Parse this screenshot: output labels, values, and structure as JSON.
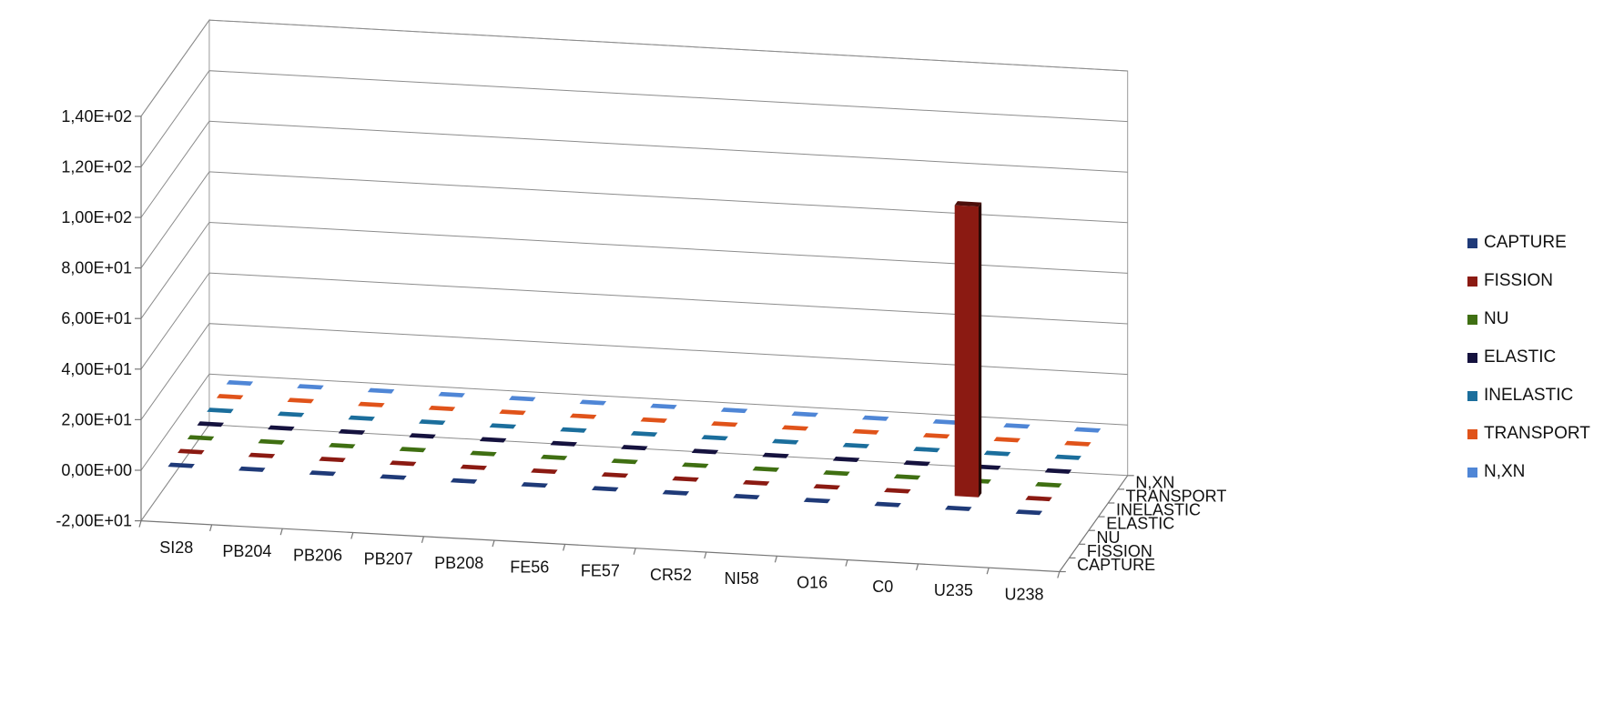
{
  "chart_data": {
    "type": "bar",
    "subtype": "3d-column",
    "title": "",
    "xlabel": "",
    "ylabel": "",
    "ylim": [
      -20,
      140
    ],
    "ytick_values": [
      -20,
      0,
      20,
      40,
      60,
      80,
      100,
      120,
      140
    ],
    "ytick_labels": [
      "-2,00E+01",
      "0,00E+00",
      "2,00E+01",
      "4,00E+01",
      "6,00E+01",
      "8,00E+01",
      "1,00E+02",
      "1,20E+02",
      "1,40E+02"
    ],
    "grid": true,
    "legend_position": "right",
    "categories": [
      "SI28",
      "PB204",
      "PB206",
      "PB207",
      "PB208",
      "FE56",
      "FE57",
      "CR52",
      "NI58",
      "O16",
      "C0",
      "U235",
      "U238"
    ],
    "depth_labels": [
      "CAPTURE",
      "FISSION",
      "NU",
      "ELASTIC",
      "INELASTIC",
      "TRANSPORT",
      "N,XN"
    ],
    "series": [
      {
        "name": "CAPTURE",
        "color": "#1f3a78",
        "values": [
          0,
          0,
          0,
          0,
          0,
          0,
          0,
          0,
          0,
          0,
          0,
          0,
          0
        ]
      },
      {
        "name": "FISSION",
        "color": "#8b1a12",
        "values": [
          0,
          0,
          0,
          0,
          0,
          0,
          0,
          0,
          0,
          0,
          0,
          115,
          0
        ]
      },
      {
        "name": "NU",
        "color": "#3f6f12",
        "values": [
          0,
          0,
          0,
          0,
          0,
          0,
          0,
          0,
          0,
          0,
          0,
          0,
          0
        ]
      },
      {
        "name": "ELASTIC",
        "color": "#15123e",
        "values": [
          0,
          0,
          0,
          0,
          0,
          0,
          0,
          0,
          0,
          0,
          0,
          0,
          0
        ]
      },
      {
        "name": "INELASTIC",
        "color": "#1b6e9c",
        "values": [
          0,
          0,
          0,
          0,
          0,
          0,
          0,
          0,
          0,
          0,
          0,
          0,
          0
        ]
      },
      {
        "name": "TRANSPORT",
        "color": "#e0531a",
        "values": [
          0,
          0,
          0,
          0,
          0,
          0,
          0,
          0,
          0,
          0,
          0,
          0,
          0
        ]
      },
      {
        "name": "N,XN",
        "color": "#4f86d6",
        "values": [
          0,
          0,
          0,
          0,
          0,
          0,
          0,
          0,
          0,
          0,
          0,
          0,
          0
        ]
      }
    ]
  }
}
